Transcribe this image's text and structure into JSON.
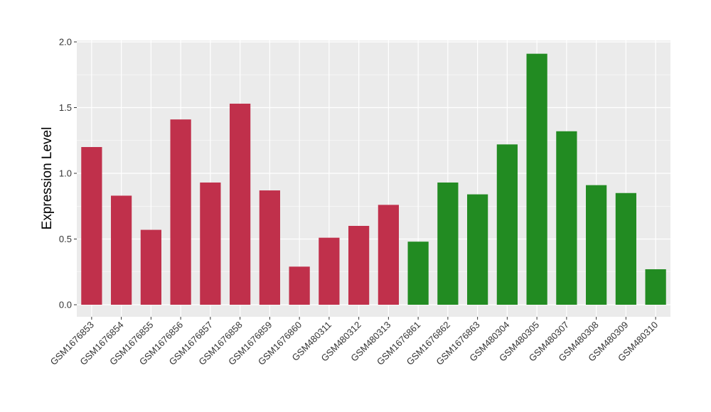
{
  "chart_data": {
    "type": "bar",
    "title": "",
    "xlabel": "",
    "ylabel": "Expression Level",
    "ylim": [
      0,
      2
    ],
    "yticks": [
      "0.0",
      "0.5",
      "1.0",
      "1.5",
      "2.0"
    ],
    "grid": true,
    "categories": [
      "GSM1676853",
      "GSM1676854",
      "GSM1676855",
      "GSM1676856",
      "GSM1676857",
      "GSM1676858",
      "GSM1676859",
      "GSM1676860",
      "GSM480311",
      "GSM480312",
      "GSM480313",
      "GSM1676861",
      "GSM1676862",
      "GSM1676863",
      "GSM480304",
      "GSM480305",
      "GSM480307",
      "GSM480308",
      "GSM480309",
      "GSM480310"
    ],
    "values": [
      1.2,
      0.83,
      0.57,
      1.41,
      0.93,
      1.53,
      0.87,
      0.29,
      0.51,
      0.6,
      0.76,
      0.48,
      0.93,
      0.84,
      1.22,
      1.91,
      1.32,
      0.91,
      0.85,
      0.27
    ],
    "groups": [
      "red",
      "red",
      "red",
      "red",
      "red",
      "red",
      "red",
      "red",
      "red",
      "red",
      "red",
      "green",
      "green",
      "green",
      "green",
      "green",
      "green",
      "green",
      "green",
      "green"
    ],
    "colors": {
      "red": "#c0304b",
      "green": "#228b22",
      "panel": "#ebebeb",
      "grid": "#ffffff"
    }
  }
}
